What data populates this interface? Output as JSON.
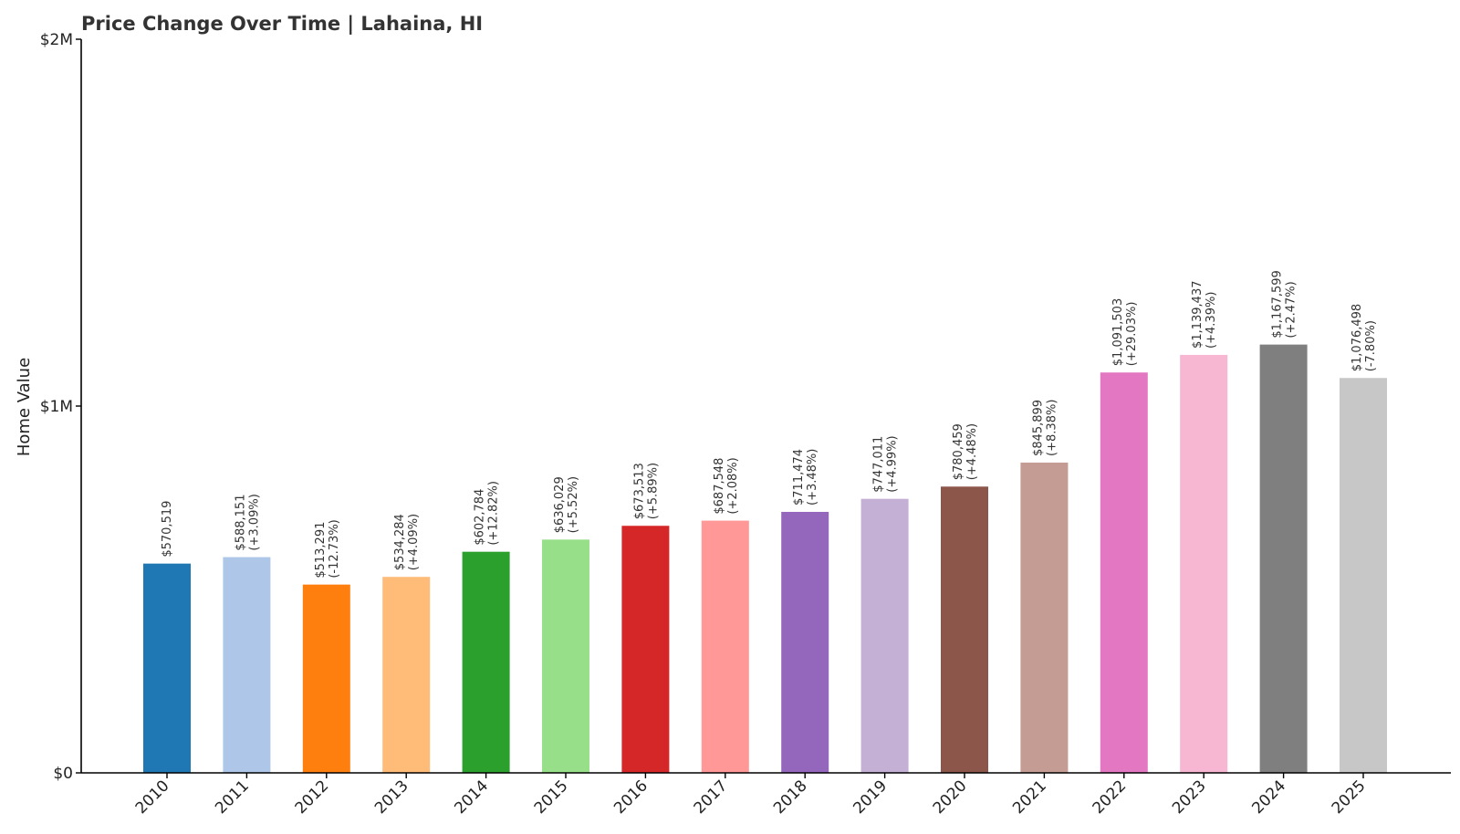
{
  "chart_data": {
    "type": "bar",
    "title": "Price Change Over Time | Lahaina, HI",
    "xlabel": "",
    "ylabel": "Home Value",
    "ylim": [
      0,
      2000000
    ],
    "yticks": [
      {
        "value": 0,
        "label": "$0"
      },
      {
        "value": 1000000,
        "label": "$1M"
      },
      {
        "value": 2000000,
        "label": "$2M"
      }
    ],
    "grid": false,
    "categories": [
      "2010",
      "2011",
      "2012",
      "2013",
      "2014",
      "2015",
      "2016",
      "2017",
      "2018",
      "2019",
      "2020",
      "2021",
      "2022",
      "2023",
      "2024",
      "2025"
    ],
    "values": [
      570519,
      588151,
      513291,
      534284,
      602784,
      636029,
      673513,
      687548,
      711474,
      747011,
      780459,
      845899,
      1091503,
      1139437,
      1167599,
      1076498
    ],
    "value_labels": [
      "$570,519",
      "$588,151",
      "$513,291",
      "$534,284",
      "$602,784",
      "$636,029",
      "$673,513",
      "$687,548",
      "$711,474",
      "$747,011",
      "$780,459",
      "$845,899",
      "$1,091,503",
      "$1,139,437",
      "$1,167,599",
      "$1,076,498"
    ],
    "change_labels": [
      "",
      "(+3.09%)",
      "(-12.73%)",
      "(+4.09%)",
      "(+12.82%)",
      "(+5.52%)",
      "(+5.89%)",
      "(+2.08%)",
      "(+3.48%)",
      "(+4.99%)",
      "(+4.48%)",
      "(+8.38%)",
      "(+29.03%)",
      "(+4.39%)",
      "(+2.47%)",
      "(-7.80%)"
    ],
    "colors": [
      "#1f77b4",
      "#aec7e8",
      "#ff7f0e",
      "#ffbb78",
      "#2ca02c",
      "#98df8a",
      "#d62728",
      "#ff9896",
      "#9467bd",
      "#c5b0d5",
      "#8c564b",
      "#c49c94",
      "#e377c2",
      "#f7b6d2",
      "#7f7f7f",
      "#c7c7c7"
    ]
  }
}
